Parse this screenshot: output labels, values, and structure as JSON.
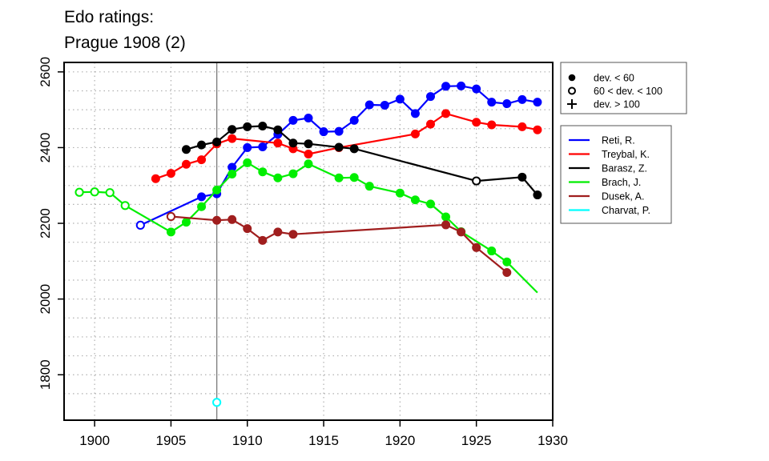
{
  "title_lines": [
    "Edo ratings:",
    "Prague 1908 (2)"
  ],
  "chart_data": {
    "type": "line",
    "title": "Edo ratings: Prague 1908 (2)",
    "xlabel": "",
    "ylabel": "",
    "xlim": [
      1898,
      1930
    ],
    "ylim": [
      1680,
      2625
    ],
    "x_ticks": [
      1900,
      1905,
      1910,
      1915,
      1920,
      1925,
      1930
    ],
    "y_ticks": [
      1800,
      2000,
      2200,
      2400,
      2600
    ],
    "grid": true,
    "reference_line_x": 1908,
    "symbol_legend": {
      "placement": "top-right outside",
      "entries": [
        {
          "symbol": "filled-circle",
          "label": "dev. < 60"
        },
        {
          "symbol": "open-circle",
          "label": "60 < dev. < 100"
        },
        {
          "symbol": "plus",
          "label": "dev. > 100"
        }
      ]
    },
    "legend_placement": "right outside",
    "series": [
      {
        "name": "Reti, R.",
        "color": "#0000ff",
        "points": [
          {
            "x": 1903,
            "y": 2195,
            "marker": "open"
          },
          {
            "x": 1907,
            "y": 2270,
            "marker": "filled"
          },
          {
            "x": 1908,
            "y": 2278,
            "marker": "filled"
          },
          {
            "x": 1909,
            "y": 2348,
            "marker": "filled"
          },
          {
            "x": 1910,
            "y": 2400,
            "marker": "filled"
          },
          {
            "x": 1911,
            "y": 2402,
            "marker": "filled"
          },
          {
            "x": 1912,
            "y": 2435,
            "marker": "filled"
          },
          {
            "x": 1913,
            "y": 2472,
            "marker": "filled"
          },
          {
            "x": 1914,
            "y": 2478,
            "marker": "filled"
          },
          {
            "x": 1915,
            "y": 2442,
            "marker": "filled"
          },
          {
            "x": 1916,
            "y": 2443,
            "marker": "filled"
          },
          {
            "x": 1917,
            "y": 2472,
            "marker": "filled"
          },
          {
            "x": 1918,
            "y": 2513,
            "marker": "filled"
          },
          {
            "x": 1919,
            "y": 2512,
            "marker": "filled"
          },
          {
            "x": 1920,
            "y": 2528,
            "marker": "filled"
          },
          {
            "x": 1921,
            "y": 2490,
            "marker": "filled"
          },
          {
            "x": 1922,
            "y": 2535,
            "marker": "filled"
          },
          {
            "x": 1923,
            "y": 2562,
            "marker": "filled"
          },
          {
            "x": 1924,
            "y": 2563,
            "marker": "filled"
          },
          {
            "x": 1925,
            "y": 2555,
            "marker": "filled"
          },
          {
            "x": 1926,
            "y": 2520,
            "marker": "filled"
          },
          {
            "x": 1927,
            "y": 2516,
            "marker": "filled"
          },
          {
            "x": 1928,
            "y": 2527,
            "marker": "filled"
          },
          {
            "x": 1929,
            "y": 2520,
            "marker": "filled"
          }
        ]
      },
      {
        "name": "Treybal, K.",
        "color": "#ff0000",
        "points": [
          {
            "x": 1904,
            "y": 2318,
            "marker": "filled"
          },
          {
            "x": 1905,
            "y": 2332,
            "marker": "filled"
          },
          {
            "x": 1906,
            "y": 2356,
            "marker": "filled"
          },
          {
            "x": 1907,
            "y": 2368,
            "marker": "filled"
          },
          {
            "x": 1908,
            "y": 2410,
            "marker": "filled"
          },
          {
            "x": 1909,
            "y": 2424,
            "marker": "filled"
          },
          {
            "x": 1912,
            "y": 2412,
            "marker": "filled"
          },
          {
            "x": 1913,
            "y": 2397,
            "marker": "filled"
          },
          {
            "x": 1914,
            "y": 2383,
            "marker": "filled"
          },
          {
            "x": 1916,
            "y": 2400,
            "marker": "filled"
          },
          {
            "x": 1921,
            "y": 2436,
            "marker": "filled"
          },
          {
            "x": 1922,
            "y": 2462,
            "marker": "filled"
          },
          {
            "x": 1923,
            "y": 2490,
            "marker": "filled"
          },
          {
            "x": 1925,
            "y": 2467,
            "marker": "filled"
          },
          {
            "x": 1926,
            "y": 2460,
            "marker": "filled"
          },
          {
            "x": 1928,
            "y": 2455,
            "marker": "filled"
          },
          {
            "x": 1929,
            "y": 2447,
            "marker": "filled"
          }
        ]
      },
      {
        "name": "Barasz, Z.",
        "color": "#000000",
        "points": [
          {
            "x": 1906,
            "y": 2395,
            "marker": "filled"
          },
          {
            "x": 1907,
            "y": 2407,
            "marker": "filled"
          },
          {
            "x": 1908,
            "y": 2415,
            "marker": "filled"
          },
          {
            "x": 1909,
            "y": 2448,
            "marker": "filled"
          },
          {
            "x": 1910,
            "y": 2455,
            "marker": "filled"
          },
          {
            "x": 1911,
            "y": 2457,
            "marker": "filled"
          },
          {
            "x": 1912,
            "y": 2447,
            "marker": "filled"
          },
          {
            "x": 1913,
            "y": 2412,
            "marker": "filled"
          },
          {
            "x": 1914,
            "y": 2410,
            "marker": "filled"
          },
          {
            "x": 1916,
            "y": 2401,
            "marker": "filled"
          },
          {
            "x": 1917,
            "y": 2397,
            "marker": "filled"
          },
          {
            "x": 1925,
            "y": 2312,
            "marker": "open"
          },
          {
            "x": 1928,
            "y": 2322,
            "marker": "filled"
          },
          {
            "x": 1929,
            "y": 2275,
            "marker": "filled"
          }
        ]
      },
      {
        "name": "Brach, J.",
        "color": "#00ee00",
        "points": [
          {
            "x": 1899,
            "y": 2282,
            "marker": "open"
          },
          {
            "x": 1900,
            "y": 2283,
            "marker": "open"
          },
          {
            "x": 1901,
            "y": 2281,
            "marker": "open"
          },
          {
            "x": 1902,
            "y": 2247,
            "marker": "open"
          },
          {
            "x": 1905,
            "y": 2177,
            "marker": "filled"
          },
          {
            "x": 1906,
            "y": 2203,
            "marker": "filled"
          },
          {
            "x": 1907,
            "y": 2244,
            "marker": "filled"
          },
          {
            "x": 1908,
            "y": 2288,
            "marker": "filled"
          },
          {
            "x": 1909,
            "y": 2330,
            "marker": "filled"
          },
          {
            "x": 1910,
            "y": 2360,
            "marker": "filled"
          },
          {
            "x": 1911,
            "y": 2336,
            "marker": "filled"
          },
          {
            "x": 1912,
            "y": 2320,
            "marker": "filled"
          },
          {
            "x": 1913,
            "y": 2331,
            "marker": "filled"
          },
          {
            "x": 1914,
            "y": 2357,
            "marker": "filled"
          },
          {
            "x": 1916,
            "y": 2320,
            "marker": "filled"
          },
          {
            "x": 1917,
            "y": 2321,
            "marker": "filled"
          },
          {
            "x": 1918,
            "y": 2298,
            "marker": "filled"
          },
          {
            "x": 1920,
            "y": 2280,
            "marker": "filled"
          },
          {
            "x": 1921,
            "y": 2262,
            "marker": "filled"
          },
          {
            "x": 1922,
            "y": 2251,
            "marker": "filled"
          },
          {
            "x": 1923,
            "y": 2217,
            "marker": "filled"
          },
          {
            "x": 1924,
            "y": 2178,
            "marker": "filled"
          },
          {
            "x": 1926,
            "y": 2127,
            "marker": "filled"
          },
          {
            "x": 1927,
            "y": 2098,
            "marker": "filled"
          },
          {
            "x": 1929,
            "y": 2017,
            "marker": "none"
          }
        ]
      },
      {
        "name": "Dusek, A.",
        "color": "#a01e1e",
        "points": [
          {
            "x": 1905,
            "y": 2218,
            "marker": "open"
          },
          {
            "x": 1908,
            "y": 2208,
            "marker": "filled"
          },
          {
            "x": 1909,
            "y": 2210,
            "marker": "filled"
          },
          {
            "x": 1910,
            "y": 2186,
            "marker": "filled"
          },
          {
            "x": 1911,
            "y": 2155,
            "marker": "filled"
          },
          {
            "x": 1912,
            "y": 2177,
            "marker": "filled"
          },
          {
            "x": 1913,
            "y": 2171,
            "marker": "filled"
          },
          {
            "x": 1923,
            "y": 2196,
            "marker": "filled"
          },
          {
            "x": 1924,
            "y": 2177,
            "marker": "filled"
          },
          {
            "x": 1925,
            "y": 2136,
            "marker": "filled"
          },
          {
            "x": 1927,
            "y": 2070,
            "marker": "filled"
          }
        ]
      },
      {
        "name": "Charvat, P.",
        "color": "#00ffff",
        "points": [
          {
            "x": 1908,
            "y": 1727,
            "marker": "open"
          }
        ]
      }
    ]
  }
}
